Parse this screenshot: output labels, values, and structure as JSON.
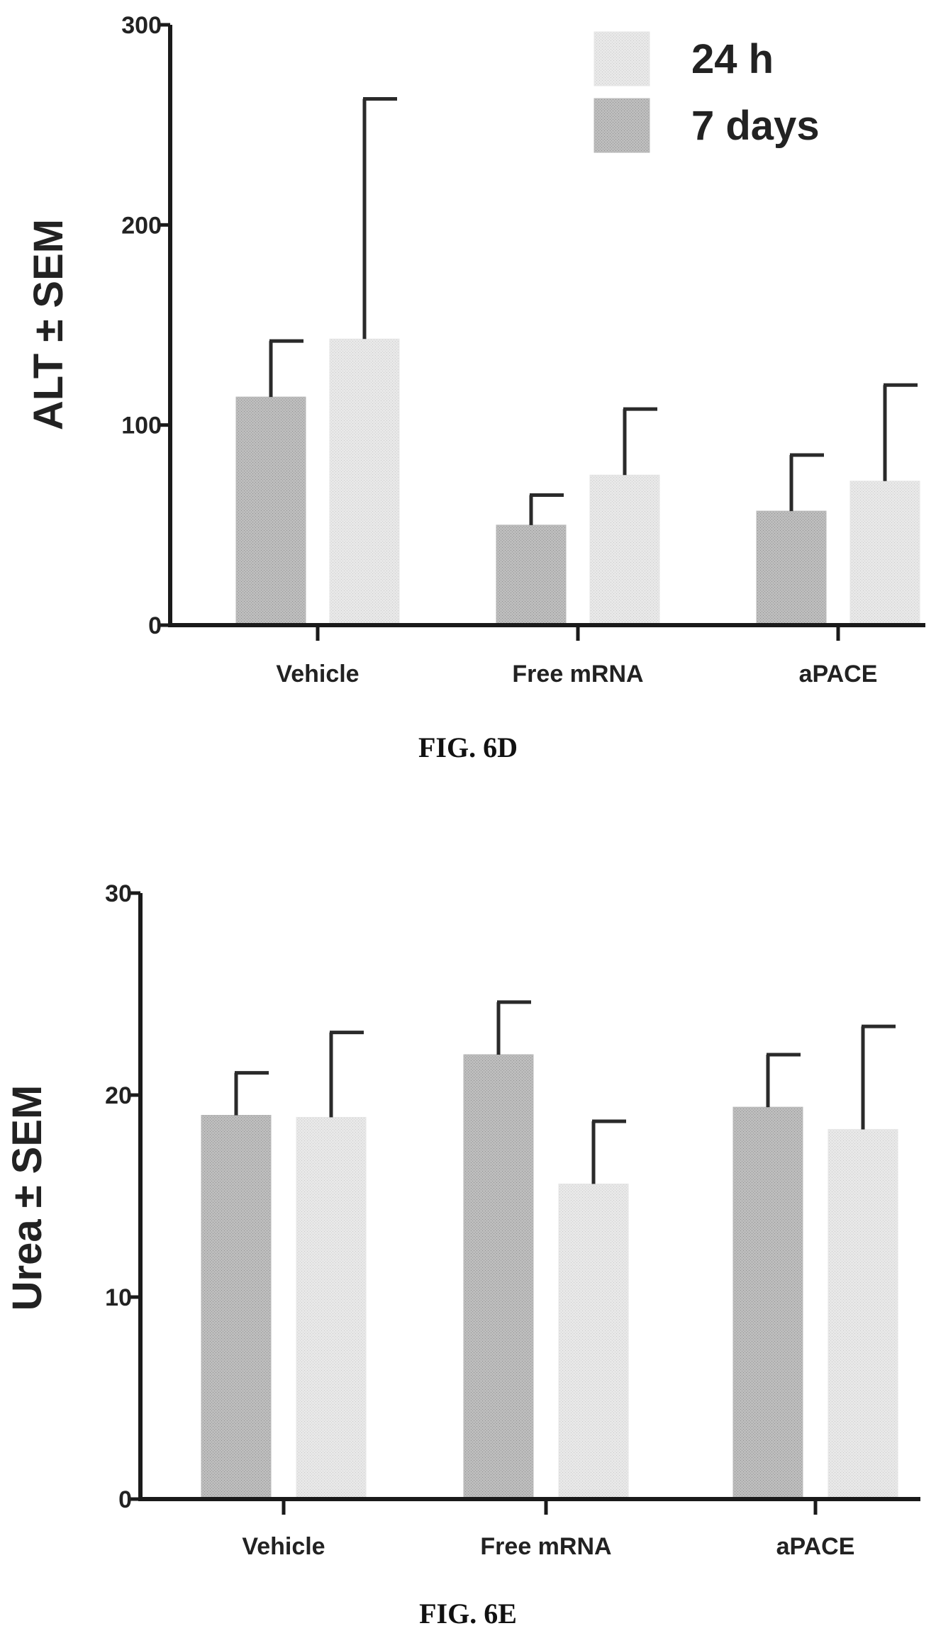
{
  "figures": [
    {
      "caption": "FIG. 6D"
    },
    {
      "caption": "FIG. 6E"
    }
  ],
  "chart_data": [
    {
      "type": "bar",
      "categories": [
        "Vehicle",
        "Free mRNA",
        "aPACE"
      ],
      "ylabel": "ALT ± SEM",
      "ylim": [
        0,
        300
      ],
      "yticks": [
        0,
        100,
        200,
        300
      ],
      "legend": {
        "placement": "top-right"
      },
      "series": [
        {
          "name": "7 days",
          "color": "#b8b8b8",
          "values": [
            114,
            50,
            57
          ],
          "errors": [
            28,
            15,
            28
          ]
        },
        {
          "name": "24 h",
          "color": "#e6e6e6",
          "values": [
            143,
            75,
            72
          ],
          "errors": [
            120,
            33,
            48
          ]
        }
      ]
    },
    {
      "type": "bar",
      "categories": [
        "Vehicle",
        "Free mRNA",
        "aPACE"
      ],
      "ylabel": "Urea ± SEM",
      "ylim": [
        0,
        30
      ],
      "yticks": [
        0,
        10,
        20,
        30
      ],
      "series": [
        {
          "color": "#b8b8b8",
          "values": [
            19.0,
            22.0,
            19.4
          ],
          "errors": [
            2.1,
            2.6,
            2.6
          ]
        },
        {
          "color": "#e6e6e6",
          "values": [
            18.9,
            15.6,
            18.3
          ],
          "errors": [
            4.2,
            3.1,
            5.1
          ]
        }
      ]
    }
  ]
}
